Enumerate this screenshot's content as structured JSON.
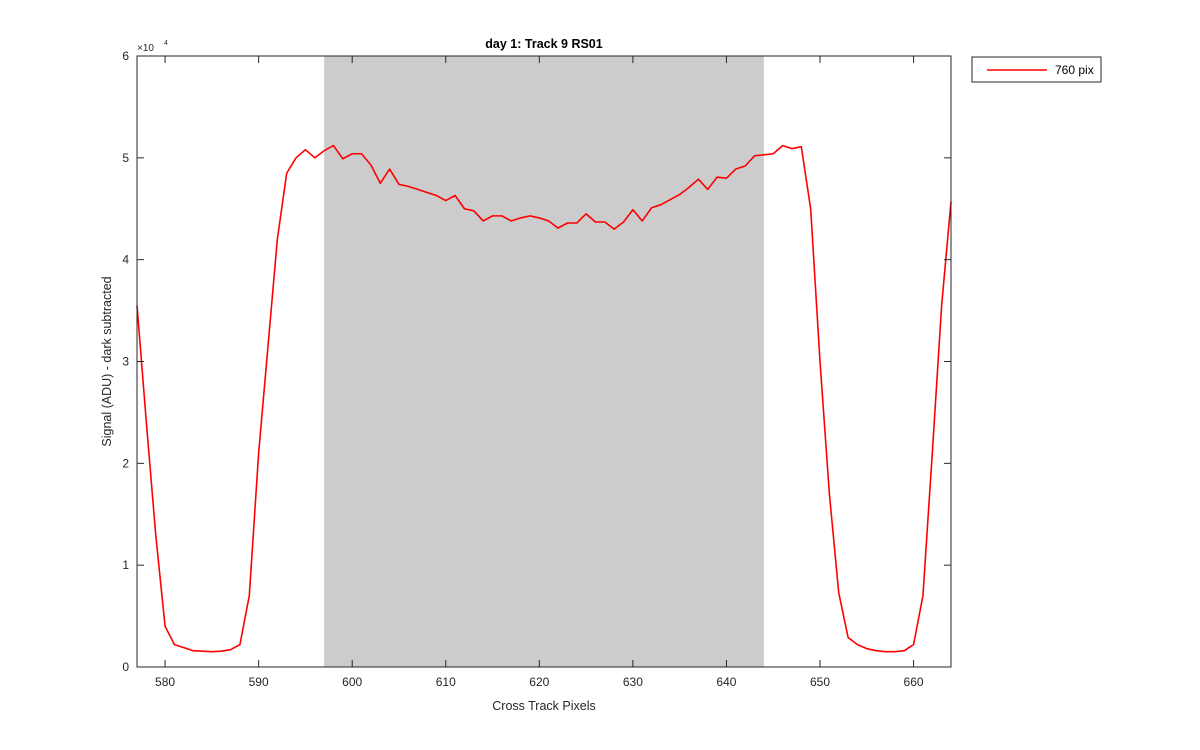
{
  "chart_data": {
    "type": "line",
    "title": "day 1: Track 9  RS01",
    "xlabel": "Cross Track Pixels",
    "ylabel": "Signal (ADU) - dark subtracted",
    "xlim": [
      577,
      664
    ],
    "ylim": [
      0,
      60000
    ],
    "xticks": [
      580,
      590,
      600,
      610,
      620,
      630,
      640,
      650,
      660
    ],
    "yticks": [
      0,
      10000,
      20000,
      30000,
      40000,
      50000,
      60000
    ],
    "ytick_labels": [
      "0",
      "1",
      "2",
      "3",
      "4",
      "5",
      "6"
    ],
    "y_exponent_base": "×10",
    "y_exponent_power": "4",
    "grid": false,
    "legend_position": "outside-top-right",
    "shaded_region": {
      "x": [
        597,
        644
      ],
      "color": "#cccccc"
    },
    "series": [
      {
        "name": "760 pix",
        "color": "#ff0000",
        "x": [
          577,
          578,
          579,
          580,
          581,
          582,
          583,
          584,
          585,
          586,
          587,
          588,
          589,
          590,
          591,
          592,
          593,
          594,
          595,
          596,
          597,
          598,
          599,
          600,
          601,
          602,
          603,
          604,
          605,
          606,
          607,
          608,
          609,
          610,
          611,
          612,
          613,
          614,
          615,
          616,
          617,
          618,
          619,
          620,
          621,
          622,
          623,
          624,
          625,
          626,
          627,
          628,
          629,
          630,
          631,
          632,
          633,
          634,
          635,
          636,
          637,
          638,
          639,
          640,
          641,
          642,
          643,
          644,
          645,
          646,
          647,
          648,
          649,
          650,
          651,
          652,
          653,
          654,
          655,
          656,
          657,
          658,
          659,
          660,
          661,
          662,
          663,
          664
        ],
        "values": [
          35500,
          24000,
          13000,
          4000,
          2200,
          1900,
          1600,
          1550,
          1500,
          1550,
          1700,
          2200,
          7000,
          21000,
          31500,
          42000,
          48500,
          50000,
          50800,
          50000,
          50700,
          51200,
          49900,
          50400,
          50400,
          49300,
          47500,
          48900,
          47400,
          47200,
          46900,
          46600,
          46300,
          45800,
          46300,
          45000,
          44800,
          43800,
          44300,
          44300,
          43800,
          44100,
          44300,
          44100,
          43800,
          43100,
          43600,
          43600,
          44500,
          43700,
          43700,
          43000,
          43700,
          44900,
          43800,
          45100,
          45400,
          45900,
          46400,
          47100,
          47900,
          46900,
          48100,
          48000,
          48900,
          49200,
          50200,
          50300,
          50400,
          51200,
          50900,
          51100,
          45000,
          30000,
          17000,
          7300,
          2900,
          2200,
          1800,
          1600,
          1500,
          1500,
          1600,
          2200,
          7000,
          21000,
          35500,
          45700
        ]
      }
    ]
  }
}
